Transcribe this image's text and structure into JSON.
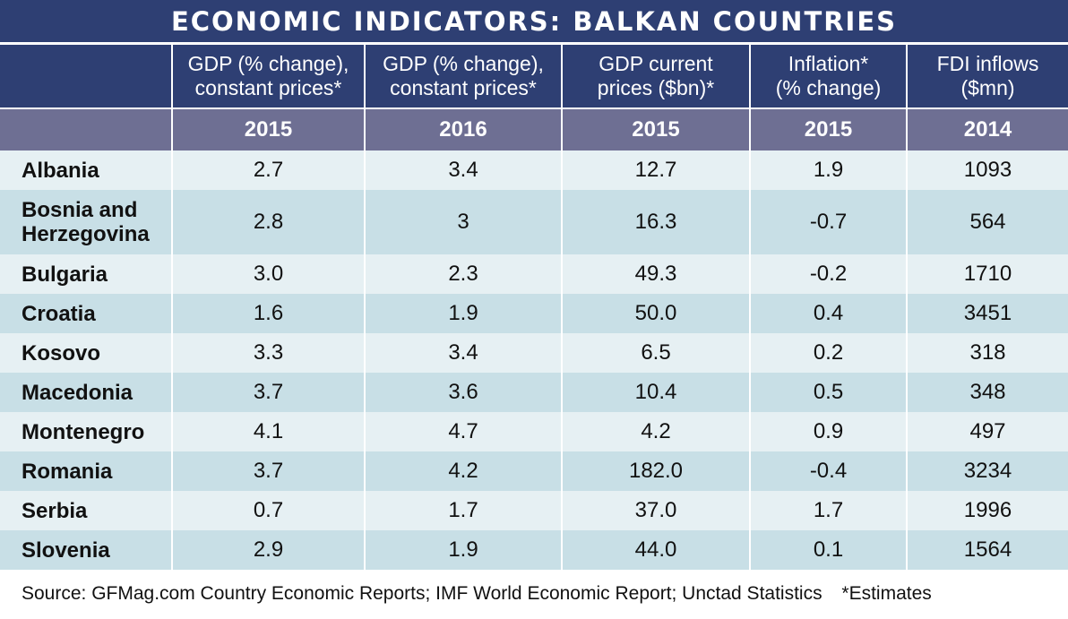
{
  "title": "ECONOMIC INDICATORS: BALKAN COUNTRIES",
  "source_text": "Source: GFMag.com Country Economic Reports; IMF World Economic Report; Unctad Statistics",
  "estimates_note": "*Estimates",
  "chart_data": {
    "type": "table",
    "title": "ECONOMIC INDICATORS: BALKAN COUNTRIES",
    "columns": [
      {
        "line1": "",
        "line2": "",
        "year": ""
      },
      {
        "line1": "GDP (% change),",
        "line2": "constant prices*",
        "year": "2015"
      },
      {
        "line1": "GDP (% change),",
        "line2": "constant prices*",
        "year": "2016"
      },
      {
        "line1": "GDP current",
        "line2": "prices ($bn)*",
        "year": "2015"
      },
      {
        "line1": "Inflation*",
        "line2": "(% change)",
        "year": "2015"
      },
      {
        "line1": "FDI inflows",
        "line2": "($mn)",
        "year": "2014"
      }
    ],
    "rows": [
      {
        "country_line1": "Albania",
        "country_line2": "",
        "values": [
          "2.7",
          "3.4",
          "12.7",
          "1.9",
          "1093"
        ]
      },
      {
        "country_line1": "Bosnia and",
        "country_line2": "Herzegovina",
        "values": [
          "2.8",
          "3",
          "16.3",
          "-0.7",
          "564"
        ]
      },
      {
        "country_line1": "Bulgaria",
        "country_line2": "",
        "values": [
          "3.0",
          "2.3",
          "49.3",
          "-0.2",
          "1710"
        ]
      },
      {
        "country_line1": "Croatia",
        "country_line2": "",
        "values": [
          "1.6",
          "1.9",
          "50.0",
          "0.4",
          "3451"
        ]
      },
      {
        "country_line1": "Kosovo",
        "country_line2": "",
        "values": [
          "3.3",
          "3.4",
          "6.5",
          "0.2",
          "318"
        ]
      },
      {
        "country_line1": "Macedonia",
        "country_line2": "",
        "values": [
          "3.7",
          "3.6",
          "10.4",
          "0.5",
          "348"
        ]
      },
      {
        "country_line1": "Montenegro",
        "country_line2": "",
        "values": [
          "4.1",
          "4.7",
          "4.2",
          "0.9",
          "497"
        ]
      },
      {
        "country_line1": "Romania",
        "country_line2": "",
        "values": [
          "3.7",
          "4.2",
          "182.0",
          "-0.4",
          "3234"
        ]
      },
      {
        "country_line1": "Serbia",
        "country_line2": "",
        "values": [
          "0.7",
          "1.7",
          "37.0",
          "1.7",
          "1996"
        ]
      },
      {
        "country_line1": "Slovenia",
        "country_line2": "",
        "values": [
          "2.9",
          "1.9",
          "44.0",
          "0.1",
          "1564"
        ]
      }
    ]
  },
  "colors": {
    "header_bg": "#2e3f73",
    "year_bg": "#6e6f93",
    "row_light": "#e6f0f3",
    "row_dark": "#c8dfe6"
  }
}
